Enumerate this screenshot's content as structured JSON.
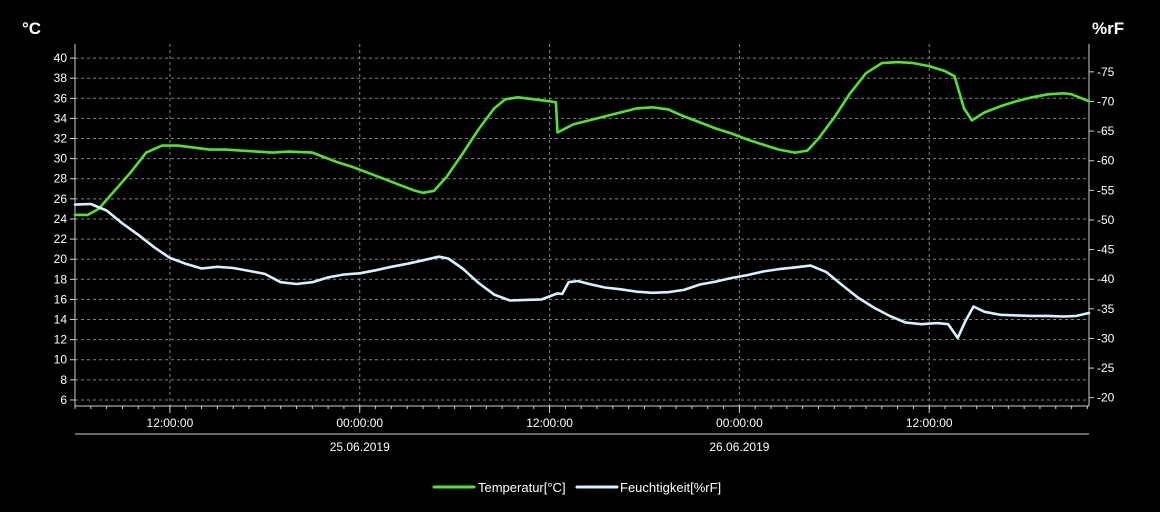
{
  "chart_data": {
    "type": "line",
    "ylabel_left": "°C",
    "ylabel_right": "%rF",
    "y_left_ticks": [
      6,
      8,
      10,
      12,
      14,
      16,
      18,
      20,
      22,
      24,
      26,
      28,
      30,
      32,
      34,
      36,
      38,
      40
    ],
    "y_right_ticks": [
      20,
      25,
      30,
      35,
      40,
      45,
      50,
      55,
      60,
      65,
      70,
      75
    ],
    "ylim_left": [
      5.4,
      41.4
    ],
    "ylim_right": [
      18.6,
      79.7
    ],
    "x_unit": "hours since first sample",
    "xlim": [
      0,
      64.1
    ],
    "x_ticks": [
      {
        "x": 6,
        "time": "12:00:00",
        "date": ""
      },
      {
        "x": 18,
        "time": "00:00:00",
        "date": "25.06.2019"
      },
      {
        "x": 30,
        "time": "12:00:00",
        "date": ""
      },
      {
        "x": 42,
        "time": "00:00:00",
        "date": "26.06.2019"
      },
      {
        "x": 54,
        "time": "12:00:00",
        "date": ""
      }
    ],
    "grid": true,
    "legend_position": "bottom-center",
    "series": [
      {
        "name": "Temperatur[°C]",
        "axis": "left",
        "color": "#55e12d",
        "points": [
          [
            0,
            24.4
          ],
          [
            0.8,
            24.4
          ],
          [
            1.5,
            25.0
          ],
          [
            2.5,
            26.8
          ],
          [
            3.5,
            28.6
          ],
          [
            4.5,
            30.6
          ],
          [
            5.5,
            31.3
          ],
          [
            6.5,
            31.3
          ],
          [
            7.5,
            31.1
          ],
          [
            8.5,
            30.9
          ],
          [
            9.5,
            30.9
          ],
          [
            10.5,
            30.8
          ],
          [
            11.5,
            30.7
          ],
          [
            12.5,
            30.6
          ],
          [
            13.5,
            30.7
          ],
          [
            15,
            30.6
          ],
          [
            16.5,
            29.7
          ],
          [
            17.5,
            29.2
          ],
          [
            18.5,
            28.6
          ],
          [
            19.5,
            28.0
          ],
          [
            20.5,
            27.4
          ],
          [
            21.5,
            26.8
          ],
          [
            22.0,
            26.6
          ],
          [
            22.7,
            26.8
          ],
          [
            23.5,
            28.2
          ],
          [
            24.5,
            30.5
          ],
          [
            25.5,
            32.9
          ],
          [
            26.5,
            35.0
          ],
          [
            27.2,
            35.9
          ],
          [
            28,
            36.1
          ],
          [
            29,
            35.9
          ],
          [
            30,
            35.7
          ],
          [
            30.4,
            35.6
          ],
          [
            30.5,
            32.6
          ],
          [
            31.5,
            33.4
          ],
          [
            32.5,
            33.8
          ],
          [
            33.5,
            34.2
          ],
          [
            34.5,
            34.6
          ],
          [
            35.5,
            35.0
          ],
          [
            36.5,
            35.1
          ],
          [
            37.5,
            34.9
          ],
          [
            38.5,
            34.2
          ],
          [
            39.5,
            33.6
          ],
          [
            40.5,
            33.0
          ],
          [
            41.5,
            32.5
          ],
          [
            42.5,
            31.9
          ],
          [
            43.5,
            31.4
          ],
          [
            44.5,
            30.9
          ],
          [
            45.5,
            30.6
          ],
          [
            46.3,
            30.8
          ],
          [
            47.0,
            32.0
          ],
          [
            48,
            34.1
          ],
          [
            49,
            36.5
          ],
          [
            50,
            38.5
          ],
          [
            51,
            39.5
          ],
          [
            52,
            39.6
          ],
          [
            53,
            39.5
          ],
          [
            54,
            39.2
          ],
          [
            55,
            38.7
          ],
          [
            55.6,
            38.2
          ],
          [
            56.2,
            35.0
          ],
          [
            56.7,
            33.8
          ],
          [
            57.5,
            34.6
          ],
          [
            58.5,
            35.2
          ],
          [
            59.5,
            35.7
          ],
          [
            60.5,
            36.1
          ],
          [
            61.5,
            36.4
          ],
          [
            62.5,
            36.5
          ],
          [
            63,
            36.4
          ],
          [
            64.1,
            35.7
          ]
        ]
      },
      {
        "name": "Feuchtigkeit[%rF]",
        "axis": "right",
        "color": "#d4f3ff",
        "points": [
          [
            0,
            52.6
          ],
          [
            1,
            52.7
          ],
          [
            2,
            51.6
          ],
          [
            3,
            49.4
          ],
          [
            4,
            47.5
          ],
          [
            5,
            45.4
          ],
          [
            6,
            43.6
          ],
          [
            7,
            42.6
          ],
          [
            8,
            41.8
          ],
          [
            9,
            42.1
          ],
          [
            10,
            41.9
          ],
          [
            11,
            41.4
          ],
          [
            12,
            40.9
          ],
          [
            13,
            39.5
          ],
          [
            14,
            39.2
          ],
          [
            15,
            39.5
          ],
          [
            16,
            40.3
          ],
          [
            17,
            40.8
          ],
          [
            18,
            41.0
          ],
          [
            19,
            41.5
          ],
          [
            20,
            42.1
          ],
          [
            21,
            42.6
          ],
          [
            22,
            43.2
          ],
          [
            23,
            43.8
          ],
          [
            23.6,
            43.5
          ],
          [
            24.5,
            41.8
          ],
          [
            25.5,
            39.4
          ],
          [
            26.5,
            37.4
          ],
          [
            27.5,
            36.4
          ],
          [
            28.5,
            36.5
          ],
          [
            29.5,
            36.6
          ],
          [
            30.5,
            37.6
          ],
          [
            30.8,
            37.5
          ],
          [
            31.2,
            39.5
          ],
          [
            31.8,
            39.7
          ],
          [
            32.5,
            39.2
          ],
          [
            33.5,
            38.6
          ],
          [
            34.5,
            38.3
          ],
          [
            35.5,
            37.9
          ],
          [
            36.5,
            37.7
          ],
          [
            37.5,
            37.8
          ],
          [
            38.5,
            38.2
          ],
          [
            39.5,
            39.1
          ],
          [
            40.5,
            39.6
          ],
          [
            41.5,
            40.2
          ],
          [
            42.5,
            40.7
          ],
          [
            43.5,
            41.3
          ],
          [
            44.5,
            41.7
          ],
          [
            45.5,
            42.0
          ],
          [
            46.5,
            42.3
          ],
          [
            47.5,
            41.2
          ],
          [
            48.5,
            39.0
          ],
          [
            49.5,
            36.9
          ],
          [
            50.5,
            35.2
          ],
          [
            51.5,
            33.8
          ],
          [
            52.5,
            32.7
          ],
          [
            53.5,
            32.4
          ],
          [
            54.5,
            32.6
          ],
          [
            55.2,
            32.4
          ],
          [
            55.8,
            30.1
          ],
          [
            56.3,
            33.0
          ],
          [
            56.8,
            35.4
          ],
          [
            57.5,
            34.5
          ],
          [
            58.5,
            34.0
          ],
          [
            59.5,
            33.9
          ],
          [
            60.5,
            33.8
          ],
          [
            61.5,
            33.8
          ],
          [
            62.5,
            33.7
          ],
          [
            63.3,
            33.8
          ],
          [
            64.1,
            34.3
          ]
        ]
      }
    ]
  }
}
